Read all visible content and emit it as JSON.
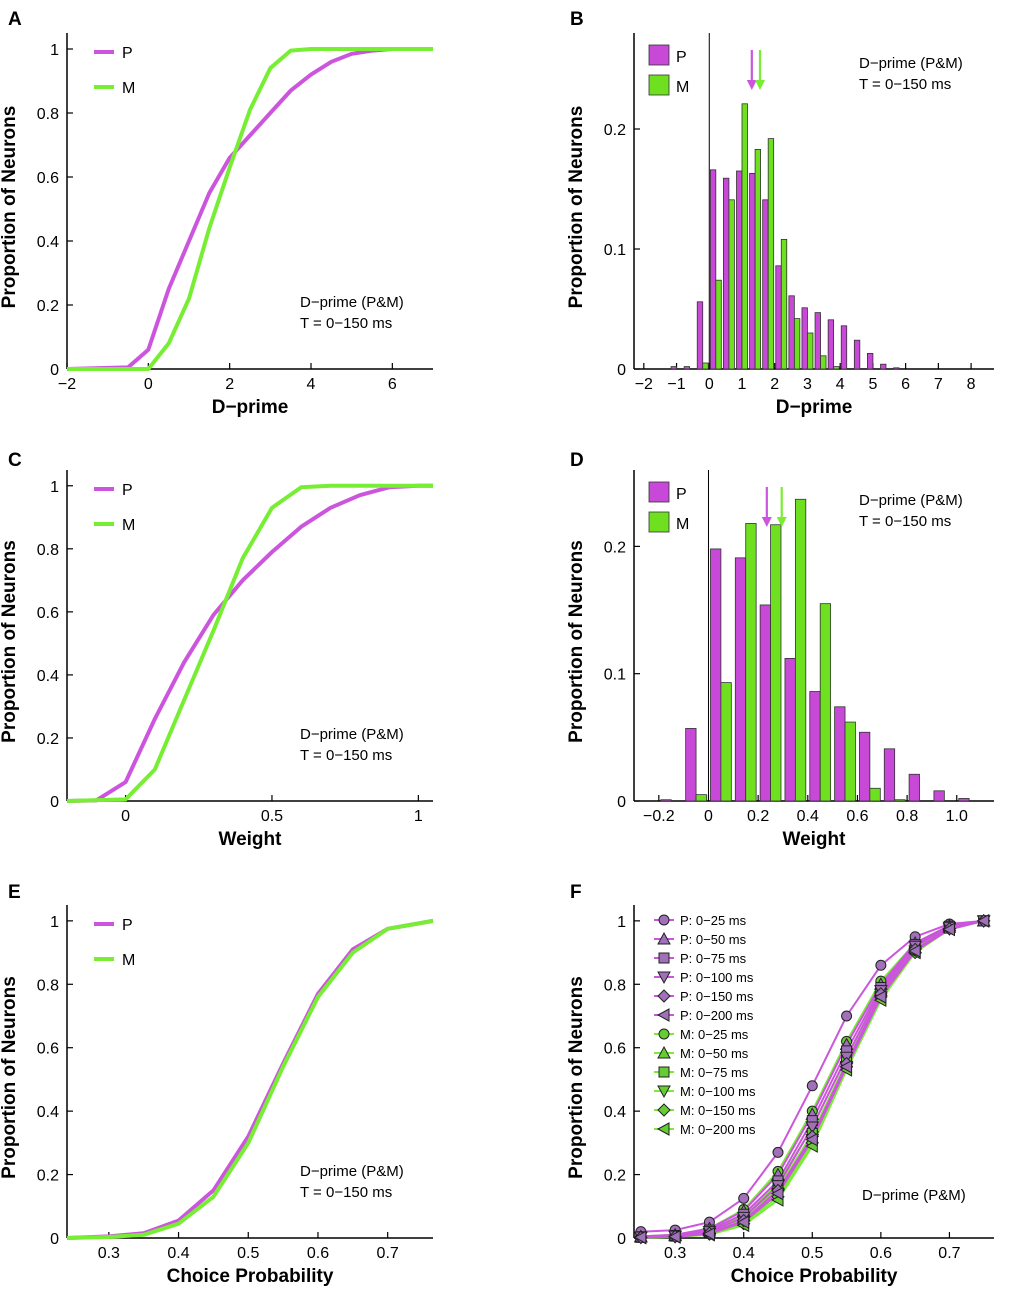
{
  "colors": {
    "P": "#cc55dd",
    "M": "#77ee33",
    "P_fill": "#c848d8",
    "M_fill": "#6ee020",
    "P_marker": "#a070b8",
    "M_marker": "#66cc33"
  },
  "chart_data": [
    {
      "id": "A",
      "panel_label": "A",
      "type": "line",
      "xlabel": "D−prime",
      "ylabel": "Proportion of Neurons",
      "xlim": [
        -2,
        7
      ],
      "ylim": [
        0,
        1.05
      ],
      "xticks": [
        -2,
        0,
        2,
        4,
        6
      ],
      "xtick_labels": [
        "−2",
        "0",
        "2",
        "4",
        "6"
      ],
      "yticks": [
        0,
        0.2,
        0.4,
        0.6,
        0.8,
        1
      ],
      "ytick_labels": [
        "0",
        "0.2",
        "0.4",
        "0.6",
        "0.8",
        "1"
      ],
      "annotation": [
        "D−prime (P&M)",
        "T = 0−150 ms"
      ],
      "legend": [
        "P",
        "M"
      ],
      "series": [
        {
          "name": "P",
          "x": [
            -2,
            -0.5,
            0,
            0.5,
            1,
            1.5,
            2,
            2.5,
            3,
            3.5,
            4,
            4.5,
            5,
            5.5,
            6,
            7
          ],
          "y": [
            0,
            0.005,
            0.06,
            0.25,
            0.4,
            0.55,
            0.66,
            0.73,
            0.8,
            0.87,
            0.92,
            0.96,
            0.985,
            0.995,
            1,
            1
          ]
        },
        {
          "name": "M",
          "x": [
            -2,
            0,
            0.5,
            1,
            1.5,
            2,
            2.5,
            3,
            3.5,
            4,
            5,
            6,
            7
          ],
          "y": [
            0,
            0,
            0.08,
            0.22,
            0.44,
            0.63,
            0.81,
            0.94,
            0.995,
            1,
            1,
            1,
            1
          ]
        }
      ]
    },
    {
      "id": "B",
      "panel_label": "B",
      "type": "bar",
      "xlabel": "D−prime",
      "ylabel": "Proportion of Neurons",
      "xlim": [
        -2.3,
        8.7
      ],
      "ylim": [
        0,
        0.28
      ],
      "xticks": [
        -2,
        -1,
        0,
        1,
        2,
        3,
        4,
        5,
        6,
        7,
        8
      ],
      "xtick_labels": [
        "−2",
        "−1",
        "0",
        "1",
        "2",
        "3",
        "4",
        "5",
        "6",
        "7",
        "8"
      ],
      "yticks": [
        0,
        0.1,
        0.2
      ],
      "ytick_labels": [
        "0",
        "0.1",
        "0.2"
      ],
      "bin_width": 0.4,
      "annotation": [
        "D−prime (P&M)",
        "T = 0−150 ms"
      ],
      "legend": [
        "P",
        "M"
      ],
      "vline_x": 0,
      "mean_P": 1.3,
      "mean_M": 1.55,
      "categories": [
        -1.2,
        -0.8,
        -0.4,
        0,
        0.4,
        0.8,
        1.2,
        1.6,
        2,
        2.4,
        2.8,
        3.2,
        3.6,
        4,
        4.4,
        4.8,
        5.2,
        5.6,
        6
      ],
      "series": [
        {
          "name": "P",
          "values": [
            0.002,
            0.002,
            0.056,
            0.166,
            0.159,
            0.165,
            0.163,
            0.141,
            0.086,
            0.061,
            0.051,
            0.047,
            0.041,
            0.036,
            0.024,
            0.013,
            0.004,
            0.001,
            0
          ]
        },
        {
          "name": "M",
          "values": [
            0,
            0,
            0.005,
            0.074,
            0.141,
            0.221,
            0.183,
            0.192,
            0.108,
            0.042,
            0.03,
            0.011,
            0.002,
            0,
            0,
            0,
            0,
            0,
            0
          ]
        }
      ]
    },
    {
      "id": "C",
      "panel_label": "C",
      "type": "line",
      "xlabel": "Weight",
      "ylabel": "Proportion of Neurons",
      "xlim": [
        -0.2,
        1.05
      ],
      "ylim": [
        0,
        1.05
      ],
      "xticks": [
        0,
        0.5,
        1
      ],
      "xtick_labels": [
        "0",
        "0.5",
        "1"
      ],
      "yticks": [
        0,
        0.2,
        0.4,
        0.6,
        0.8,
        1
      ],
      "ytick_labels": [
        "0",
        "0.2",
        "0.4",
        "0.6",
        "0.8",
        "1"
      ],
      "annotation": [
        "D−prime (P&M)",
        "T = 0−150 ms"
      ],
      "legend": [
        "P",
        "M"
      ],
      "series": [
        {
          "name": "P",
          "x": [
            -0.2,
            -0.1,
            0,
            0.1,
            0.2,
            0.3,
            0.4,
            0.5,
            0.6,
            0.7,
            0.8,
            0.9,
            1,
            1.05
          ],
          "y": [
            0,
            0.002,
            0.06,
            0.26,
            0.44,
            0.59,
            0.7,
            0.79,
            0.87,
            0.93,
            0.97,
            0.995,
            1,
            1
          ]
        },
        {
          "name": "M",
          "x": [
            -0.2,
            0,
            0.1,
            0.2,
            0.3,
            0.4,
            0.5,
            0.6,
            0.7,
            1.05
          ],
          "y": [
            0,
            0.005,
            0.1,
            0.32,
            0.54,
            0.77,
            0.93,
            0.995,
            1,
            1
          ]
        }
      ]
    },
    {
      "id": "D",
      "panel_label": "D",
      "type": "bar",
      "xlabel": "Weight",
      "ylabel": "Proportion of Neurons",
      "xlim": [
        -0.3,
        1.15
      ],
      "ylim": [
        0,
        0.26
      ],
      "xticks": [
        -0.2,
        0,
        0.2,
        0.4,
        0.6,
        0.8,
        1.0
      ],
      "xtick_labels": [
        "−0.2",
        "0",
        "0.2",
        "0.4",
        "0.6",
        "0.8",
        "1.0"
      ],
      "yticks": [
        0,
        0.1,
        0.2
      ],
      "ytick_labels": [
        "0",
        "0.1",
        "0.2"
      ],
      "bin_width": 0.1,
      "annotation": [
        "D−prime (P&M)",
        "T = 0−150 ms"
      ],
      "legend": [
        "P",
        "M"
      ],
      "vline_x": 0,
      "mean_P": 0.235,
      "mean_M": 0.295,
      "categories": [
        -0.2,
        -0.1,
        0,
        0.1,
        0.2,
        0.3,
        0.4,
        0.5,
        0.6,
        0.7,
        0.8,
        0.9,
        1.0
      ],
      "series": [
        {
          "name": "P",
          "values": [
            0.001,
            0.057,
            0.198,
            0.191,
            0.154,
            0.112,
            0.086,
            0.074,
            0.054,
            0.041,
            0.021,
            0.008,
            0.002
          ]
        },
        {
          "name": "M",
          "values": [
            0,
            0.005,
            0.093,
            0.218,
            0.217,
            0.237,
            0.155,
            0.062,
            0.01,
            0.001,
            0,
            0,
            0
          ]
        }
      ]
    },
    {
      "id": "E",
      "panel_label": "E",
      "type": "line",
      "xlabel": "Choice Probability",
      "ylabel": "Proportion of Neurons",
      "xlim": [
        0.24,
        0.765
      ],
      "ylim": [
        0,
        1.05
      ],
      "xticks": [
        0.3,
        0.4,
        0.5,
        0.6,
        0.7
      ],
      "xtick_labels": [
        "0.3",
        "0.4",
        "0.5",
        "0.6",
        "0.7"
      ],
      "yticks": [
        0,
        0.2,
        0.4,
        0.6,
        0.8,
        1
      ],
      "ytick_labels": [
        "0",
        "0.2",
        "0.4",
        "0.6",
        "0.8",
        "1"
      ],
      "annotation": [
        "D−prime (P&M)",
        "T = 0−150 ms"
      ],
      "legend": [
        "P",
        "M"
      ],
      "series": [
        {
          "name": "P",
          "x": [
            0.24,
            0.3,
            0.35,
            0.4,
            0.45,
            0.5,
            0.55,
            0.6,
            0.65,
            0.7,
            0.765
          ],
          "y": [
            0,
            0.005,
            0.015,
            0.055,
            0.15,
            0.32,
            0.55,
            0.77,
            0.91,
            0.975,
            1
          ]
        },
        {
          "name": "M",
          "x": [
            0.24,
            0.3,
            0.35,
            0.4,
            0.45,
            0.5,
            0.55,
            0.6,
            0.65,
            0.7,
            0.765
          ],
          "y": [
            0,
            0.003,
            0.01,
            0.045,
            0.13,
            0.3,
            0.54,
            0.76,
            0.9,
            0.975,
            1
          ]
        }
      ]
    },
    {
      "id": "F",
      "panel_label": "F",
      "type": "line",
      "xlabel": "Choice Probability",
      "ylabel": "Proportion of Neurons",
      "xlim": [
        0.24,
        0.765
      ],
      "ylim": [
        0,
        1.05
      ],
      "xticks": [
        0.3,
        0.4,
        0.5,
        0.6,
        0.7
      ],
      "xtick_labels": [
        "0.3",
        "0.4",
        "0.5",
        "0.6",
        "0.7"
      ],
      "yticks": [
        0,
        0.2,
        0.4,
        0.6,
        0.8,
        1
      ],
      "ytick_labels": [
        "0",
        "0.2",
        "0.4",
        "0.6",
        "0.8",
        "1"
      ],
      "annotation": [
        "D−prime (P&M)"
      ],
      "x": [
        0.25,
        0.3,
        0.35,
        0.4,
        0.45,
        0.5,
        0.55,
        0.6,
        0.65,
        0.7,
        0.75
      ],
      "series": [
        {
          "name": "P: 0−25 ms",
          "group": "P",
          "marker": "circle",
          "values": [
            0.02,
            0.025,
            0.05,
            0.125,
            0.27,
            0.48,
            0.7,
            0.86,
            0.95,
            0.99,
            1
          ]
        },
        {
          "name": "P: 0−50 ms",
          "group": "P",
          "marker": "triangle-up",
          "values": [
            0.005,
            0.01,
            0.03,
            0.085,
            0.2,
            0.39,
            0.61,
            0.8,
            0.93,
            0.985,
            1
          ]
        },
        {
          "name": "P: 0−75 ms",
          "group": "P",
          "marker": "square",
          "values": [
            0.004,
            0.008,
            0.025,
            0.075,
            0.18,
            0.37,
            0.59,
            0.79,
            0.925,
            0.983,
            1
          ]
        },
        {
          "name": "P: 0−100 ms",
          "group": "P",
          "marker": "triangle-down",
          "values": [
            0.003,
            0.006,
            0.02,
            0.065,
            0.165,
            0.35,
            0.57,
            0.78,
            0.92,
            0.98,
            1
          ]
        },
        {
          "name": "P: 0−150 ms",
          "group": "P",
          "marker": "diamond",
          "values": [
            0.002,
            0.005,
            0.015,
            0.055,
            0.15,
            0.32,
            0.55,
            0.77,
            0.91,
            0.975,
            1
          ]
        },
        {
          "name": "P: 0−200 ms",
          "group": "P",
          "marker": "triangle-left",
          "values": [
            0.002,
            0.004,
            0.013,
            0.05,
            0.14,
            0.31,
            0.54,
            0.76,
            0.905,
            0.973,
            1
          ]
        },
        {
          "name": "M: 0−25 ms",
          "group": "M",
          "marker": "circle",
          "values": [
            0.005,
            0.01,
            0.03,
            0.09,
            0.21,
            0.4,
            0.62,
            0.81,
            0.93,
            0.985,
            1
          ]
        },
        {
          "name": "M: 0−50 ms",
          "group": "M",
          "marker": "triangle-up",
          "values": [
            0.003,
            0.007,
            0.022,
            0.07,
            0.17,
            0.35,
            0.57,
            0.78,
            0.915,
            0.98,
            1
          ]
        },
        {
          "name": "M: 0−75 ms",
          "group": "M",
          "marker": "square",
          "values": [
            0.002,
            0.006,
            0.018,
            0.06,
            0.155,
            0.33,
            0.555,
            0.77,
            0.91,
            0.977,
            1
          ]
        },
        {
          "name": "M: 0−100 ms",
          "group": "M",
          "marker": "triangle-down",
          "values": [
            0.002,
            0.005,
            0.014,
            0.05,
            0.14,
            0.31,
            0.54,
            0.76,
            0.905,
            0.975,
            1
          ]
        },
        {
          "name": "M: 0−150 ms",
          "group": "M",
          "marker": "diamond",
          "values": [
            0.002,
            0.004,
            0.012,
            0.045,
            0.13,
            0.3,
            0.54,
            0.76,
            0.9,
            0.975,
            1
          ]
        },
        {
          "name": "M: 0−200 ms",
          "group": "M",
          "marker": "triangle-left",
          "values": [
            0.001,
            0.003,
            0.01,
            0.04,
            0.12,
            0.29,
            0.53,
            0.75,
            0.9,
            0.973,
            1
          ]
        }
      ]
    }
  ]
}
